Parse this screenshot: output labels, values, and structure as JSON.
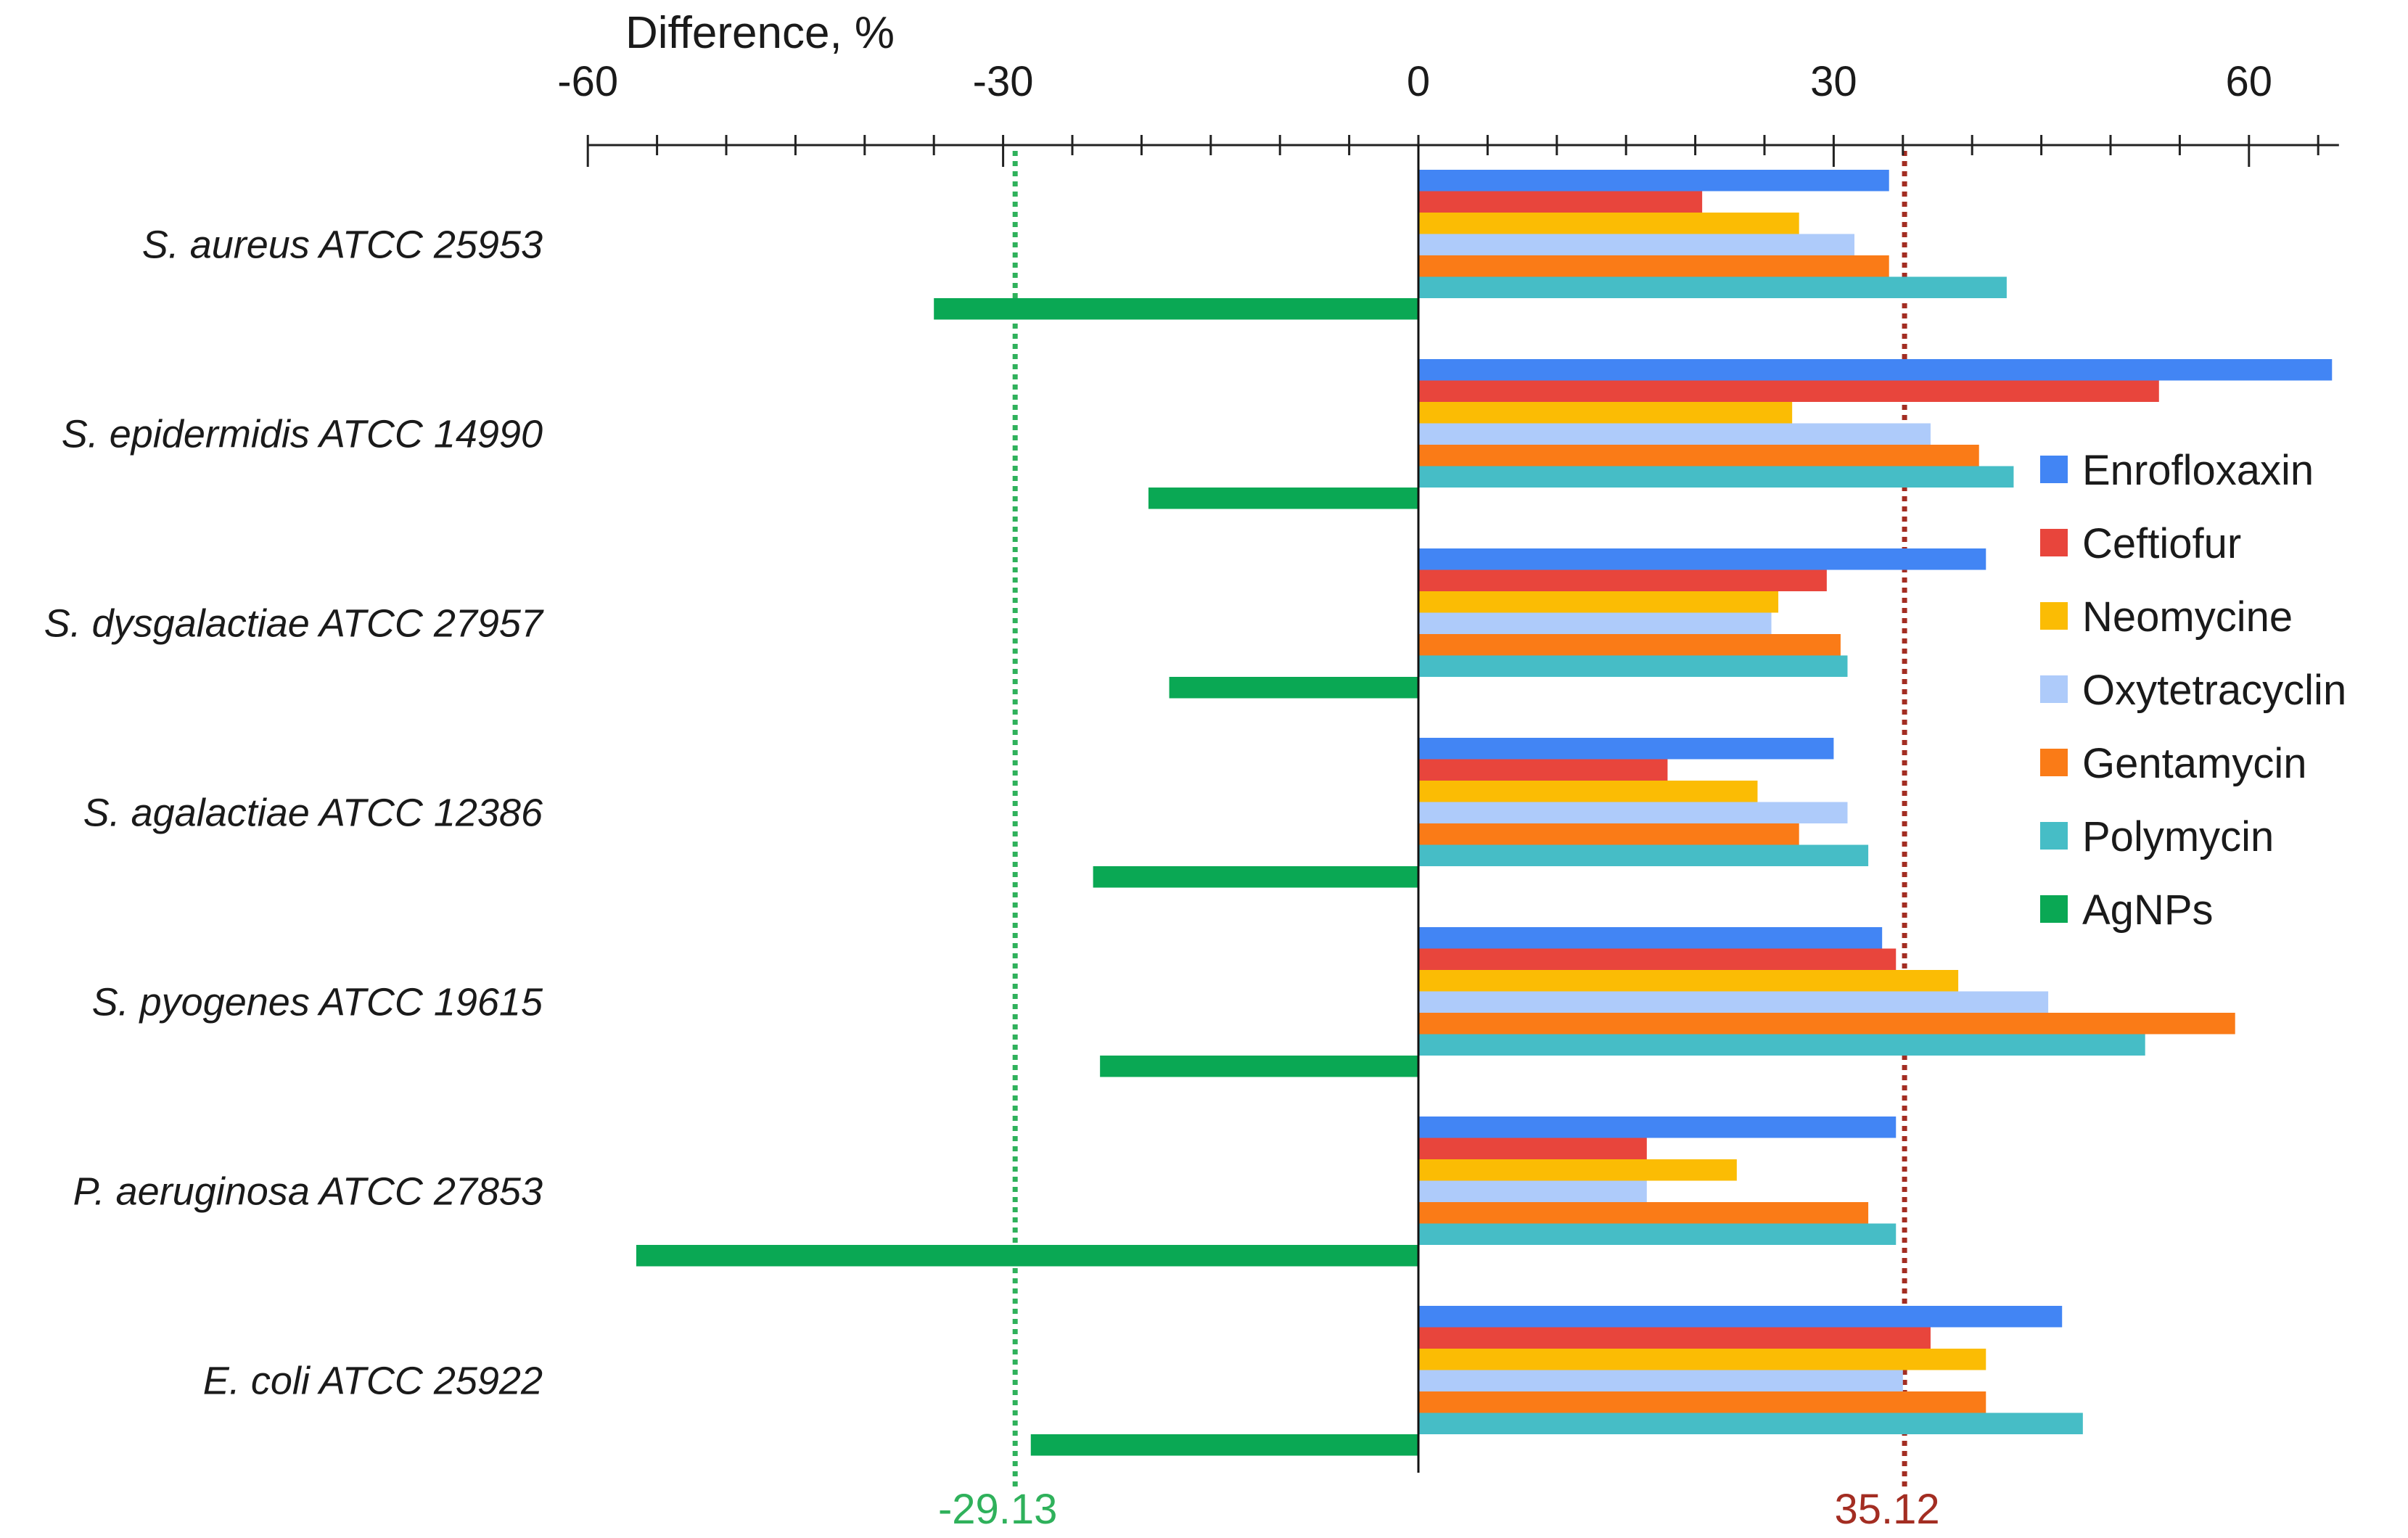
{
  "chart_data": {
    "type": "bar",
    "orientation": "horizontal",
    "title": "",
    "xlabel": "Difference, %",
    "ylabel": "",
    "xlim": [
      -60,
      70
    ],
    "xticks": [
      -60,
      -30,
      0,
      30,
      60
    ],
    "xtick_labels": [
      "-60",
      "-30",
      "0",
      "30",
      "60"
    ],
    "categories": [
      "S. aureus ATCC 25953",
      "S. epidermidis ATCC 14990",
      "S. dysgalactiae ATCC 27957",
      "S. agalactiae ATCC 12386",
      "S. pyogenes ATCC 19615",
      "P. aeruginosa ATCC 27853",
      "E. coli ATCC 25922"
    ],
    "series": [
      {
        "name": "Enrofloxaxin",
        "color": "#4285f4",
        "values": [
          34,
          66,
          41,
          30,
          33.5,
          34.5,
          46.5
        ]
      },
      {
        "name": "Ceftiofur",
        "color": "#e8453c",
        "values": [
          20.5,
          53.5,
          29.5,
          18,
          34.5,
          16.5,
          37
        ]
      },
      {
        "name": "Neomycine",
        "color": "#fbbc04",
        "values": [
          27.5,
          27,
          26,
          24.5,
          39,
          23,
          41
        ]
      },
      {
        "name": "Oxytetracyclin",
        "color": "#aecbfa",
        "values": [
          31.5,
          37,
          25.5,
          31,
          45.5,
          16.5,
          35
        ]
      },
      {
        "name": "Gentamycin",
        "color": "#fa7b17",
        "values": [
          34,
          40.5,
          30.5,
          27.5,
          59,
          32.5,
          41
        ]
      },
      {
        "name": "Polymycin",
        "color": "#46bdc6",
        "values": [
          42.5,
          43,
          31,
          32.5,
          52.5,
          34.5,
          48
        ]
      },
      {
        "name": "AgNPs",
        "color": "#0aa854",
        "values": [
          -35,
          -19.5,
          -18,
          -23.5,
          -23,
          -56.5,
          -28
        ]
      }
    ],
    "reference_lines": [
      {
        "value": -29.13,
        "label": "-29.13",
        "color": "#2fb15b"
      },
      {
        "value": 35.12,
        "label": "35.12",
        "color": "#a32d22"
      }
    ],
    "legend_position": "right",
    "grid": false
  }
}
